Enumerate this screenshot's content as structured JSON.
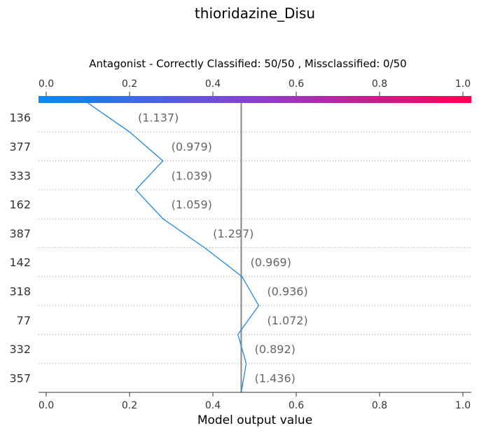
{
  "chart_data": {
    "type": "line",
    "title": "thioridazine_Disu",
    "subtitle": "Antagonist - Correctly Classified: 50/50 , Missclassified: 0/50",
    "xlabel": "Model output value",
    "xlim": [
      0.0,
      1.0
    ],
    "xticks": [
      "0.0",
      "0.2",
      "0.4",
      "0.6",
      "0.8",
      "1.0"
    ],
    "base_value": 0.468,
    "colorbar": {
      "from": "#008bfb",
      "mid": "#8a3fd1",
      "to": "#ff0052"
    },
    "line_color": "#1e88e5",
    "grid": "dotted horizontal",
    "rows": [
      {
        "label": "136",
        "value_label": "(1.137)"
      },
      {
        "label": "377",
        "value_label": "(0.979)"
      },
      {
        "label": "333",
        "value_label": "(1.039)"
      },
      {
        "label": "162",
        "value_label": "(1.059)"
      },
      {
        "label": "387",
        "value_label": "(1.297)"
      },
      {
        "label": "142",
        "value_label": "(0.969)"
      },
      {
        "label": "318",
        "value_label": "(0.936)"
      },
      {
        "label": "77",
        "value_label": "(1.072)"
      },
      {
        "label": "332",
        "value_label": "(0.892)"
      },
      {
        "label": "357",
        "value_label": "(1.436)"
      }
    ],
    "path_x": [
      0.1,
      0.2,
      0.28,
      0.215,
      0.28,
      0.38,
      0.47,
      0.51,
      0.46,
      0.48,
      0.468
    ]
  }
}
